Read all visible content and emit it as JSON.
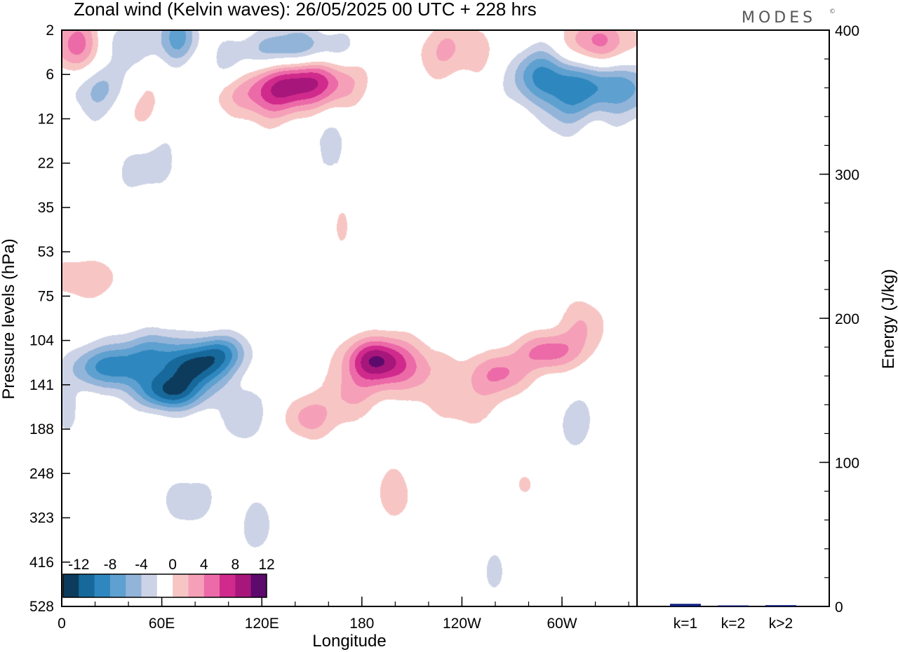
{
  "chart_data": {
    "type": "heatmap",
    "title": "Zonal wind (Kelvin waves):  26/05/2025  00 UTC  + 228 hrs",
    "brand": "MODES",
    "brand_mark": "©",
    "xlabel": "Longitude",
    "ylabel": "Pressure levels (hPa)",
    "x_ticks": [
      "0",
      "60E",
      "120E",
      "180",
      "120W",
      "60W"
    ],
    "y_ticks": [
      "2",
      "6",
      "12",
      "22",
      "35",
      "53",
      "75",
      "104",
      "141",
      "188",
      "248",
      "323",
      "416",
      "528"
    ],
    "colorbar": {
      "labels": [
        "-12",
        "-8",
        "-4",
        "0",
        "4",
        "8",
        "12"
      ],
      "levels": [
        -14,
        -12,
        -10,
        -8,
        -6,
        -4,
        -2,
        2,
        4,
        6,
        8,
        10,
        12,
        14
      ],
      "colors": [
        "#0d3b5c",
        "#17699b",
        "#2f87bf",
        "#5ea0cf",
        "#93b4d9",
        "#cdd3e6",
        "#ffffff",
        "#f7c6c4",
        "#f5a0b8",
        "#ec6aa8",
        "#d02a8c",
        "#a7167b",
        "#5c0a6c"
      ]
    },
    "energy": {
      "ylabel": "Energy (J/kg)",
      "ylim": [
        0,
        400
      ],
      "y_ticks": [
        "0",
        "100",
        "200",
        "300",
        "400"
      ],
      "categories": [
        "k=1",
        "k=2",
        "k>2"
      ],
      "values": [
        1.8,
        0.4,
        0.9
      ],
      "bar_color": "#0f1f7a"
    },
    "blobs": [
      {
        "lon": 12,
        "p": 3.3,
        "dlon": 13,
        "dlev": 0.55,
        "amp": 9
      },
      {
        "lon": 35,
        "p": 2.7,
        "dlon": 12,
        "dlev": 0.4,
        "amp": -5
      },
      {
        "lon": 22,
        "p": 6.8,
        "dlon": 16,
        "dlev": 0.5,
        "amp": -7
      },
      {
        "lon": 44,
        "p": 9.0,
        "dlon": 10,
        "dlev": 0.7,
        "amp": 4
      },
      {
        "lon": 70,
        "p": 2.7,
        "dlon": 9,
        "dlev": 0.5,
        "amp": -8
      },
      {
        "lon": 100,
        "p": 5.2,
        "dlon": 10,
        "dlev": 0.35,
        "amp": -4
      },
      {
        "lon": 78,
        "p": 4.6,
        "dlon": 12,
        "dlev": 0.4,
        "amp": 3
      },
      {
        "lon": 120,
        "p": 7.8,
        "dlon": 18,
        "dlev": 0.45,
        "amp": 7
      },
      {
        "lon": 150,
        "p": 6.5,
        "dlon": 18,
        "dlev": 0.45,
        "amp": 10
      },
      {
        "lon": 140,
        "p": 3.3,
        "dlon": 22,
        "dlev": 0.35,
        "amp": -8
      },
      {
        "lon": 235,
        "p": 3.3,
        "dlon": 20,
        "dlev": 0.5,
        "amp": 4
      },
      {
        "lon": 285,
        "p": 5.8,
        "dlon": 14,
        "dlev": 0.45,
        "amp": -6
      },
      {
        "lon": 325,
        "p": 7.0,
        "dlon": 24,
        "dlev": 0.5,
        "amp": -9
      },
      {
        "lon": 322,
        "p": 3.0,
        "dlon": 16,
        "dlev": 0.45,
        "amp": 8
      },
      {
        "lon": 300,
        "p": 9.5,
        "dlon": 10,
        "dlev": 0.6,
        "amp": -3
      },
      {
        "lon": 160,
        "p": 16.0,
        "dlon": 8,
        "dlev": 0.55,
        "amp": -3
      },
      {
        "lon": 50,
        "p": 22.0,
        "dlon": 18,
        "dlev": 0.6,
        "amp": -3
      },
      {
        "lon": 12,
        "p": 65.0,
        "dlon": 16,
        "dlev": 0.35,
        "amp": 4
      },
      {
        "lon": 30,
        "p": 125.0,
        "dlon": 18,
        "dlev": 0.35,
        "amp": -9
      },
      {
        "lon": 55,
        "p": 110.0,
        "dlon": 14,
        "dlev": 0.35,
        "amp": -5
      },
      {
        "lon": 65,
        "p": 148.0,
        "dlon": 14,
        "dlev": 0.3,
        "amp": -11
      },
      {
        "lon": 80,
        "p": 125.0,
        "dlon": 14,
        "dlev": 0.33,
        "amp": -10
      },
      {
        "lon": 95,
        "p": 112.0,
        "dlon": 12,
        "dlev": 0.3,
        "amp": -7
      },
      {
        "lon": 108,
        "p": 170.0,
        "dlon": 10,
        "dlev": 0.45,
        "amp": -4
      },
      {
        "lon": 4,
        "p": 170.0,
        "dlon": 5,
        "dlev": 0.4,
        "amp": -3
      },
      {
        "lon": 75,
        "p": 290.0,
        "dlon": 14,
        "dlev": 0.5,
        "amp": -3
      },
      {
        "lon": 118,
        "p": 340.0,
        "dlon": 8,
        "dlev": 0.55,
        "amp": -3
      },
      {
        "lon": 148,
        "p": 175.0,
        "dlon": 10,
        "dlev": 0.35,
        "amp": 5
      },
      {
        "lon": 186,
        "p": 118.0,
        "dlon": 12,
        "dlev": 0.35,
        "amp": 9
      },
      {
        "lon": 205,
        "p": 125.0,
        "dlon": 16,
        "dlev": 0.45,
        "amp": 6
      },
      {
        "lon": 172,
        "p": 150.0,
        "dlon": 12,
        "dlev": 0.45,
        "amp": 4
      },
      {
        "lon": 200,
        "p": 280.0,
        "dlon": 10,
        "dlev": 0.55,
        "amp": 3
      },
      {
        "lon": 262,
        "p": 130.0,
        "dlon": 14,
        "dlev": 0.35,
        "amp": 6
      },
      {
        "lon": 240,
        "p": 160.0,
        "dlon": 16,
        "dlev": 0.45,
        "amp": 3
      },
      {
        "lon": 292,
        "p": 112.0,
        "dlon": 13,
        "dlev": 0.3,
        "amp": 7
      },
      {
        "lon": 312,
        "p": 92.0,
        "dlon": 10,
        "dlev": 0.45,
        "amp": 4
      },
      {
        "lon": 308,
        "p": 180.0,
        "dlon": 9,
        "dlev": 0.5,
        "amp": -3
      },
      {
        "lon": 260,
        "p": 440.0,
        "dlon": 5,
        "dlev": 0.4,
        "amp": -3
      },
      {
        "lon": 278,
        "p": 265.0,
        "dlon": 4,
        "dlev": 0.2,
        "amp": 3
      },
      {
        "lon": 168,
        "p": 42.0,
        "dlon": 3,
        "dlev": 0.3,
        "amp": 3
      }
    ]
  }
}
